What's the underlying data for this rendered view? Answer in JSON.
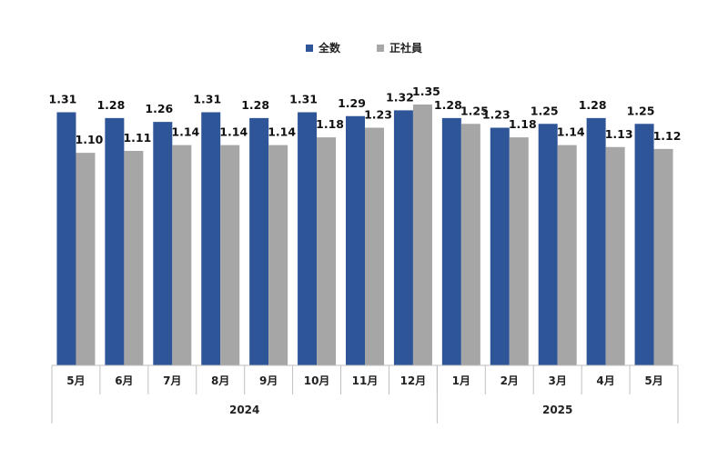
{
  "chart_data": {
    "type": "bar",
    "categories": [
      "5月",
      "6月",
      "7月",
      "8月",
      "9月",
      "10月",
      "11月",
      "12月",
      "1月",
      "2月",
      "3月",
      "4月",
      "5月"
    ],
    "groups": [
      {
        "label": "2024",
        "count": 8
      },
      {
        "label": "2025",
        "count": 5
      }
    ],
    "series": [
      {
        "name": "全数",
        "color": "#2e5597",
        "values": [
          1.31,
          1.28,
          1.26,
          1.31,
          1.28,
          1.31,
          1.29,
          1.32,
          1.28,
          1.23,
          1.25,
          1.28,
          1.25
        ],
        "labels": [
          "1.31",
          "1.28",
          "1.26",
          "1.31",
          "1.28",
          "1.31",
          "1.29",
          "1.32",
          "1.28",
          "1.23",
          "1.25",
          "1.28",
          "1.25"
        ]
      },
      {
        "name": "正社員",
        "color": "#a6a6a6",
        "values": [
          1.1,
          1.11,
          1.14,
          1.14,
          1.14,
          1.18,
          1.23,
          1.35,
          1.25,
          1.18,
          1.14,
          1.13,
          1.12
        ],
        "labels": [
          "1.10",
          "1.11",
          "1.14",
          "1.14",
          "1.14",
          "1.18",
          "1.23",
          "1.35",
          "1.25",
          "1.18",
          "1.14",
          "1.13",
          "1.12"
        ]
      }
    ],
    "ylim": [
      0,
      1.35
    ],
    "grid": false,
    "legend_position": "top-center"
  }
}
